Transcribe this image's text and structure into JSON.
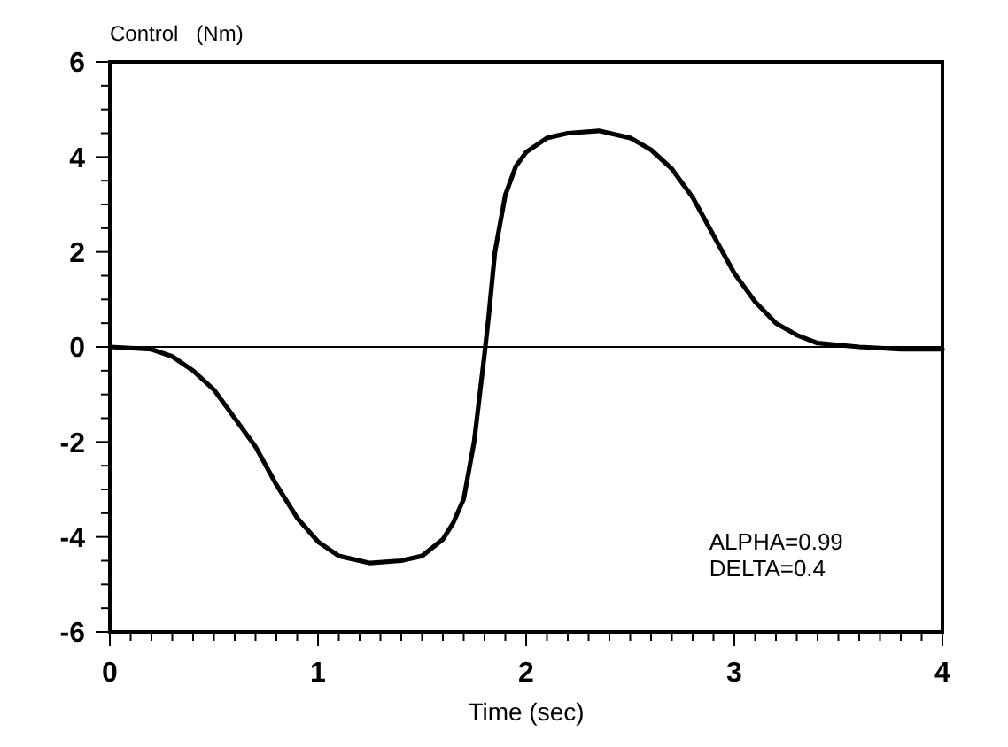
{
  "chart_data": {
    "type": "line",
    "xlabel": "Time (sec)",
    "ylabel": "Control   (Nm)",
    "x": [
      0,
      0.2,
      0.3,
      0.4,
      0.5,
      0.6,
      0.7,
      0.8,
      0.9,
      1.0,
      1.1,
      1.25,
      1.4,
      1.5,
      1.6,
      1.65,
      1.7,
      1.75,
      1.8,
      1.82,
      1.85,
      1.9,
      1.95,
      2.0,
      2.1,
      2.2,
      2.35,
      2.5,
      2.6,
      2.7,
      2.8,
      2.9,
      3.0,
      3.1,
      3.2,
      3.3,
      3.4,
      3.6,
      3.8,
      4.0
    ],
    "series": [
      {
        "color": "#000000",
        "values": [
          0,
          -0.05,
          -0.2,
          -0.5,
          -0.9,
          -1.5,
          -2.1,
          -2.9,
          -3.6,
          -4.1,
          -4.4,
          -4.55,
          -4.5,
          -4.4,
          -4.05,
          -3.7,
          -3.2,
          -2.0,
          -0.15,
          0.65,
          2.0,
          3.2,
          3.8,
          4.1,
          4.4,
          4.5,
          4.55,
          4.4,
          4.15,
          3.75,
          3.15,
          2.35,
          1.55,
          0.95,
          0.5,
          0.25,
          0.08,
          0,
          -0.05,
          -0.05
        ]
      }
    ],
    "xlim": [
      0,
      4
    ],
    "ylim": [
      -6,
      6
    ],
    "xticks": [
      0,
      {
        "value": 0.1,
        "label": null
      },
      {
        "value": 0.2,
        "label": null
      },
      {
        "value": 0.3,
        "label": null
      },
      {
        "value": 0.4,
        "label": null
      },
      {
        "value": 0.5,
        "label": null
      },
      {
        "value": 0.6,
        "label": null
      },
      {
        "value": 0.7,
        "label": null
      },
      {
        "value": 0.8,
        "label": null
      },
      {
        "value": 0.9,
        "label": null
      },
      1,
      {
        "value": 1.1,
        "label": null
      },
      {
        "value": 1.2,
        "label": null
      },
      {
        "value": 1.3,
        "label": null
      },
      {
        "value": 1.4,
        "label": null
      },
      {
        "value": 1.5,
        "label": null
      },
      {
        "value": 1.6,
        "label": null
      },
      {
        "value": 1.7,
        "label": null
      },
      {
        "value": 1.8,
        "label": null
      },
      {
        "value": 1.9,
        "label": null
      },
      2,
      {
        "value": 2.1,
        "label": null
      },
      {
        "value": 2.2,
        "label": null
      },
      {
        "value": 2.3,
        "label": null
      },
      {
        "value": 2.4,
        "label": null
      },
      {
        "value": 2.5,
        "label": null
      },
      {
        "value": 2.6,
        "label": null
      },
      {
        "value": 2.7,
        "label": null
      },
      {
        "value": 2.8,
        "label": null
      },
      {
        "value": 2.9,
        "label": null
      },
      3,
      {
        "value": 3.1,
        "label": null
      },
      {
        "value": 3.2,
        "label": null
      },
      {
        "value": 3.3,
        "label": null
      },
      {
        "value": 3.4,
        "label": null
      },
      {
        "value": 3.5,
        "label": null
      },
      {
        "value": 3.6,
        "label": null
      },
      {
        "value": 3.7,
        "label": null
      },
      {
        "value": 3.8,
        "label": null
      },
      {
        "value": 3.9,
        "label": null
      },
      4
    ],
    "yticks": [
      -6,
      {
        "value": -5.5,
        "label": null
      },
      {
        "value": -5,
        "label": null
      },
      {
        "value": -4.5,
        "label": null
      },
      -4,
      {
        "value": -3.5,
        "label": null
      },
      {
        "value": -3,
        "label": null
      },
      {
        "value": -2.5,
        "label": null
      },
      -2,
      {
        "value": -1.5,
        "label": null
      },
      {
        "value": -1,
        "label": null
      },
      {
        "value": -0.5,
        "label": null
      },
      0,
      {
        "value": 0.5,
        "label": null
      },
      {
        "value": 1,
        "label": null
      },
      {
        "value": 1.5,
        "label": null
      },
      2,
      {
        "value": 2.5,
        "label": null
      },
      {
        "value": 3,
        "label": null
      },
      {
        "value": 3.5,
        "label": null
      },
      4,
      {
        "value": 4.5,
        "label": null
      },
      {
        "value": 5,
        "label": null
      },
      {
        "value": 5.5,
        "label": null
      },
      6
    ],
    "ref_lines": [
      {
        "axis": "y",
        "value": 0,
        "color": "#000000"
      }
    ],
    "annotations": [
      "ALPHA=0.99",
      "DELTA=0.4"
    ],
    "marker": "none",
    "line_style": "solid"
  }
}
